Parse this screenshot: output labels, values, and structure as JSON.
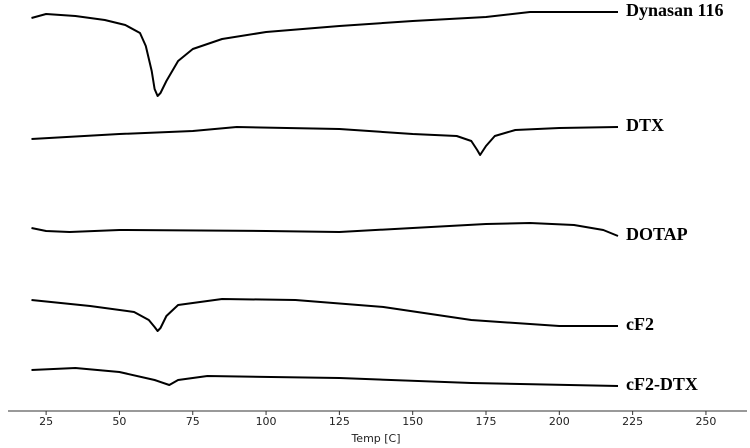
{
  "chart_data": {
    "type": "line",
    "xlabel": "Temp [C]",
    "xlim": [
      12,
      264
    ],
    "xticks": [
      25,
      50,
      75,
      100,
      125,
      150,
      175,
      200,
      225,
      250
    ],
    "ylim": [
      0,
      411
    ],
    "series": [
      {
        "name": "Dynasan 116",
        "color": "#000000",
        "x": [
          20,
          25,
          35,
          45,
          52,
          57,
          59,
          61,
          62,
          63,
          64,
          66,
          70,
          75,
          85,
          100,
          125,
          150,
          175,
          190,
          220
        ],
        "values": [
          393,
          397,
          395,
          391,
          386,
          378,
          365,
          340,
          322,
          315,
          318,
          330,
          350,
          362,
          372,
          379,
          385,
          390,
          394,
          399,
          399
        ]
      },
      {
        "name": "DTX",
        "color": "#000000",
        "x": [
          20,
          50,
          75,
          90,
          125,
          150,
          165,
          170,
          172,
          173,
          175,
          178,
          185,
          200,
          220
        ],
        "values": [
          272,
          277,
          280,
          284,
          282,
          277,
          275,
          270,
          261,
          256,
          265,
          275,
          281,
          283,
          284
        ]
      },
      {
        "name": "DOTAP",
        "color": "#000000",
        "x": [
          20,
          25,
          33,
          50,
          100,
          125,
          150,
          175,
          190,
          205,
          215,
          220
        ],
        "values": [
          183,
          180,
          179,
          181,
          180,
          179,
          183,
          187,
          188,
          186,
          181,
          175
        ]
      },
      {
        "name": "cF2",
        "color": "#000000",
        "x": [
          20,
          40,
          55,
          60,
          62,
          63,
          64,
          66,
          70,
          85,
          110,
          140,
          170,
          200,
          220
        ],
        "values": [
          111,
          105,
          99,
          91,
          84,
          80,
          83,
          95,
          106,
          112,
          111,
          104,
          91,
          85,
          85
        ]
      },
      {
        "name": "cF2-DTX",
        "color": "#000000",
        "x": [
          20,
          35,
          50,
          62,
          67,
          70,
          80,
          125,
          170,
          220
        ],
        "values": [
          41,
          43,
          39,
          31,
          26,
          31,
          35,
          33,
          28,
          25
        ]
      }
    ]
  }
}
